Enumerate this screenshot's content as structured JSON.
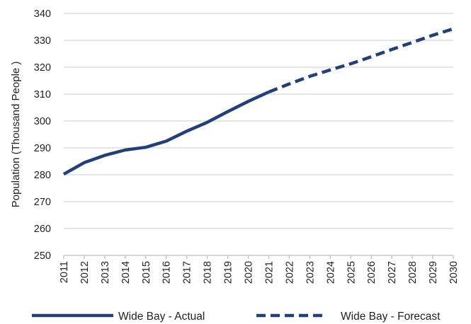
{
  "chart_data": {
    "type": "line",
    "ylabel": "Population (Thousand People )",
    "xlabel": "",
    "ylim": [
      250,
      340
    ],
    "yticks": [
      250,
      260,
      270,
      280,
      290,
      300,
      310,
      320,
      330,
      340
    ],
    "grid": true,
    "legend_position": "bottom",
    "categories": [
      "2011",
      "2012",
      "2013",
      "2014",
      "2015",
      "2016",
      "2017",
      "2018",
      "2019",
      "2020",
      "2021",
      "2022",
      "2023",
      "2024",
      "2025",
      "2026",
      "2027",
      "2028",
      "2029",
      "2030"
    ],
    "series": [
      {
        "name": "Wide Bay - Actual",
        "style": "solid",
        "color": "#233f78",
        "x": [
          "2011",
          "2012",
          "2013",
          "2014",
          "2015",
          "2016",
          "2017",
          "2018",
          "2019",
          "2020",
          "2021"
        ],
        "values": [
          280.2,
          284.5,
          287.2,
          289.2,
          290.2,
          292.5,
          296.2,
          299.5,
          303.5,
          307.3,
          310.8
        ]
      },
      {
        "name": "Wide Bay - Forecast",
        "style": "dashed",
        "color": "#233f78",
        "x": [
          "2021",
          "2022",
          "2023",
          "2024",
          "2025",
          "2026",
          "2027",
          "2028",
          "2029",
          "2030"
        ],
        "values": [
          310.8,
          313.8,
          316.6,
          319.0,
          321.3,
          323.9,
          326.6,
          329.2,
          331.9,
          334.3
        ]
      }
    ]
  }
}
